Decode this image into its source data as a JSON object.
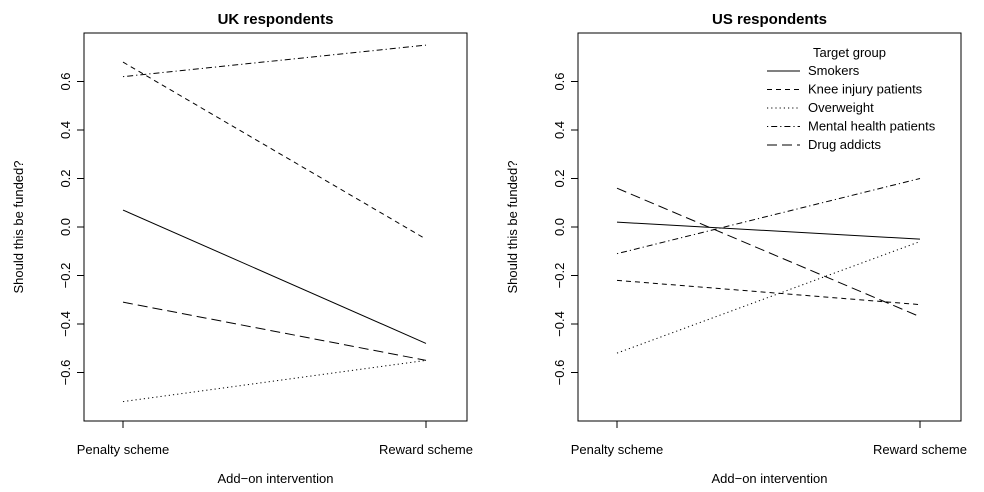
{
  "chart_data": [
    {
      "type": "line",
      "title": "UK respondents",
      "xlabel": "Add−on intervention",
      "ylabel": "Should this be funded?",
      "categories": [
        "Penalty scheme",
        "Reward scheme"
      ],
      "ylim": [
        -0.8,
        0.8
      ],
      "yticks": [
        "−0.6",
        "−0.4",
        "−0.2",
        "0.0",
        "0.2",
        "0.4",
        "0.6"
      ],
      "series": [
        {
          "name": "Smokers",
          "values": [
            0.07,
            -0.48
          ]
        },
        {
          "name": "Knee injury patients",
          "values": [
            0.68,
            -0.05
          ]
        },
        {
          "name": "Overweight",
          "values": [
            -0.72,
            -0.55
          ]
        },
        {
          "name": "Mental health patients",
          "values": [
            0.62,
            0.75
          ]
        },
        {
          "name": "Drug addicts",
          "values": [
            -0.31,
            -0.55
          ]
        }
      ],
      "grid": false
    },
    {
      "type": "line",
      "title": "US respondents",
      "xlabel": "Add−on intervention",
      "ylabel": "Should this be funded?",
      "categories": [
        "Penalty scheme",
        "Reward scheme"
      ],
      "ylim": [
        -0.8,
        0.8
      ],
      "yticks": [
        "−0.6",
        "−0.4",
        "−0.2",
        "0.0",
        "0.2",
        "0.4",
        "0.6"
      ],
      "series": [
        {
          "name": "Smokers",
          "values": [
            0.02,
            -0.05
          ]
        },
        {
          "name": "Knee injury patients",
          "values": [
            -0.22,
            -0.32
          ]
        },
        {
          "name": "Overweight",
          "values": [
            -0.52,
            -0.06
          ]
        },
        {
          "name": "Mental health patients",
          "values": [
            -0.11,
            0.2
          ]
        },
        {
          "name": "Drug addicts",
          "values": [
            0.16,
            -0.37
          ]
        }
      ],
      "legend_title": "Target group",
      "legend_position": "top-right",
      "grid": false
    }
  ],
  "line_styles": {
    "Smokers": "solid",
    "Knee injury patients": "short-dash",
    "Overweight": "dotted",
    "Mental health patients": "dash-dot",
    "Drug addicts": "long-dash"
  },
  "colors": {
    "ink": "#000000",
    "background": "#ffffff"
  }
}
